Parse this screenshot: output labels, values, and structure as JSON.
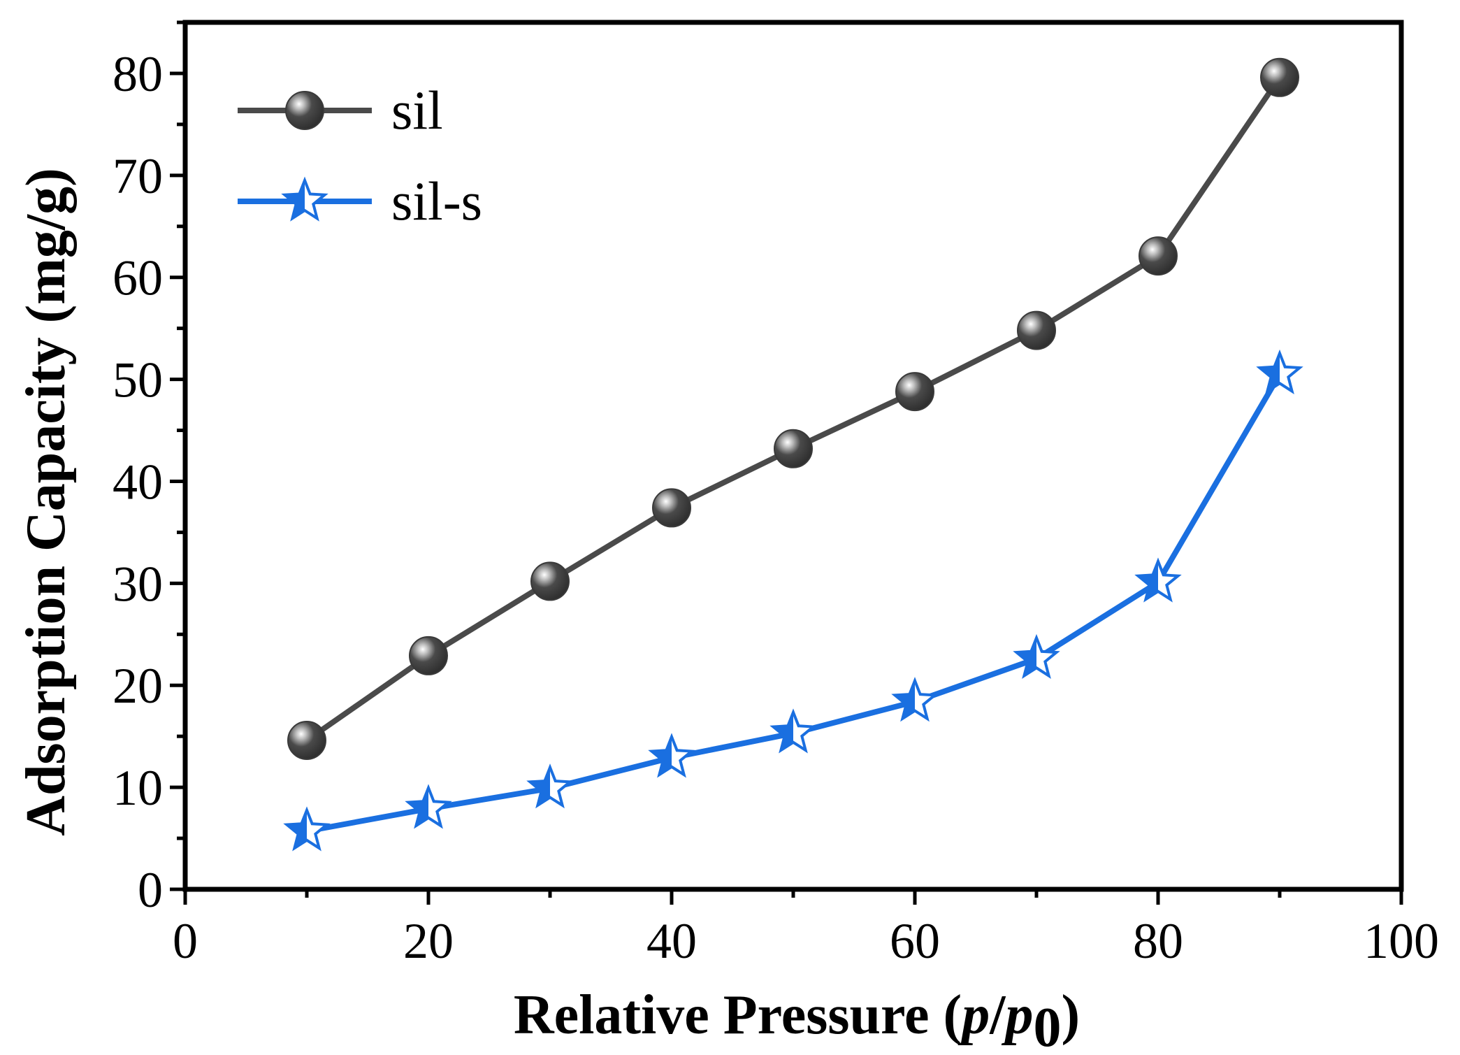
{
  "chart_data": {
    "type": "line",
    "title": "",
    "xlabel_main": "Relative Pressure (",
    "xlabel_var1": "p",
    "xlabel_slash": "/",
    "xlabel_var2": "p",
    "xlabel_sub": "0",
    "xlabel_close": ")",
    "ylabel": "Adsorption Capacity (mg/g)",
    "xlim": [
      0,
      100
    ],
    "ylim": [
      0,
      85
    ],
    "x_ticks": [
      0,
      20,
      40,
      60,
      80,
      100
    ],
    "y_ticks": [
      0,
      10,
      20,
      30,
      40,
      50,
      60,
      70,
      80
    ],
    "x_tick_labels": [
      "0",
      "20",
      "40",
      "60",
      "80",
      "100"
    ],
    "y_tick_labels": [
      "0",
      "10",
      "20",
      "30",
      "40",
      "50",
      "60",
      "70",
      "80"
    ],
    "grid": false,
    "legend_position": "top-left",
    "x": [
      10,
      20,
      30,
      40,
      50,
      60,
      70,
      80,
      90
    ],
    "series": [
      {
        "name": "sil",
        "color": "#4a4a4a",
        "marker": "sphere",
        "values": [
          14.6,
          22.9,
          30.2,
          37.4,
          43.2,
          48.8,
          54.8,
          62.1,
          79.6
        ]
      },
      {
        "name": "sil-s",
        "color": "#1a6fe0",
        "marker": "half-star",
        "values": [
          5.7,
          7.9,
          9.9,
          12.9,
          15.3,
          18.4,
          22.6,
          30.1,
          50.5
        ]
      }
    ]
  }
}
